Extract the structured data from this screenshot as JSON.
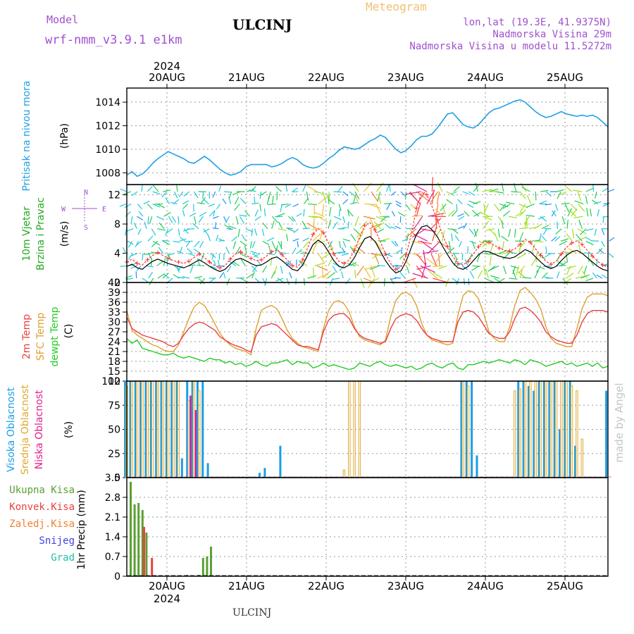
{
  "header": {
    "model_label": "Model",
    "model_value": "wrf-nmm_v3.9.1 e1km",
    "station": "ULCINJ",
    "meteogram": "Meteogram",
    "lonlat": "lon,lat (19.3E, 41.9375N)",
    "altitude": "Nadmorska Visina 29m",
    "model_altitude": "Nadmorska Visina u modelu 11.5272m",
    "year": "2024",
    "footer_station": "ULCINJ",
    "watermark": "made by Angel"
  },
  "colors": {
    "pressure": "#1ea0e6",
    "wind_speed": "#000000",
    "wind_gust": "#ff3030",
    "temp_2m": "#e84040",
    "sfc_temp": "#e0a030",
    "dewpoint": "#22cc22",
    "cloud_high": "#1a9ee6",
    "cloud_mid": "#e0a830",
    "cloud_low": "#e0208a",
    "precip_total": "#5aa032",
    "precip_conv": "#e84040",
    "precip_strat": "#f08030",
    "snow": "#4040e0",
    "hail": "#20c0a0"
  },
  "days": [
    "20AUG",
    "21AUG",
    "22AUG",
    "23AUG",
    "24AUG",
    "25AUG"
  ],
  "compass": {
    "n": "N",
    "s": "S",
    "e": "E",
    "w": "W"
  },
  "chart_data": [
    {
      "type": "line",
      "panel": "pressure",
      "ylabel_series": "Pritisak na nivou mora",
      "ylabel_unit": "(hPa)",
      "ylim": [
        1007,
        1015.2
      ],
      "yticks": [
        "1008",
        "1010",
        "1012",
        "1014"
      ],
      "x_hours_start": 0,
      "x_hours_step": 1,
      "series": [
        {
          "values": [
            1007.8,
            1008.1,
            1007.7,
            1007.9,
            1008.3,
            1008.8,
            1009.2,
            1009.5,
            1009.8,
            1009.6,
            1009.4,
            1009.2,
            1008.9,
            1008.8,
            1009.1,
            1009.4,
            1009.1,
            1008.7,
            1008.3,
            1008.0,
            1007.8,
            1007.9,
            1008.1,
            1008.5,
            1008.7,
            1008.7,
            1008.7,
            1008.7,
            1008.5,
            1008.6,
            1008.8,
            1009.1,
            1009.3,
            1009.1,
            1008.7,
            1008.5,
            1008.4,
            1008.5,
            1008.8,
            1009.2,
            1009.5,
            1009.9,
            1010.2,
            1010.1,
            1010.0,
            1010.1,
            1010.4,
            1010.7,
            1010.9,
            1011.2,
            1011.0,
            1010.5,
            1010.0,
            1009.7,
            1009.9,
            1010.3,
            1010.8,
            1011.1,
            1011.1,
            1011.3,
            1011.8,
            1012.4,
            1013.0,
            1013.1,
            1012.6,
            1012.1,
            1011.9,
            1011.8,
            1012.1,
            1012.6,
            1013.1,
            1013.4,
            1013.5,
            1013.7,
            1013.9,
            1014.1,
            1014.2,
            1014.0,
            1013.6,
            1013.2,
            1012.9,
            1012.7,
            1012.8,
            1013.0,
            1013.2,
            1013.0,
            1012.9,
            1012.8,
            1012.9,
            1012.8,
            1012.9,
            1012.7,
            1012.3,
            1011.9
          ]
        }
      ]
    },
    {
      "type": "line",
      "panel": "wind",
      "ylabel_series": "10m Vjetar",
      "ylabel_sub": "Brzina i Pravac",
      "ylabel_unit": "(m/s)",
      "ylim": [
        0,
        13.4
      ],
      "yticks": [
        "0",
        "4",
        "8",
        "12"
      ],
      "series": [
        {
          "name": "wind_speed",
          "values": [
            2.2,
            2.5,
            2.0,
            1.8,
            2.4,
            2.9,
            3.2,
            2.9,
            2.6,
            2.4,
            2.2,
            2.0,
            2.3,
            2.7,
            3.1,
            2.7,
            2.2,
            1.8,
            1.5,
            1.8,
            2.5,
            3.1,
            3.3,
            3.0,
            2.6,
            2.3,
            2.4,
            2.8,
            3.3,
            3.5,
            3.0,
            2.4,
            1.8,
            1.6,
            2.4,
            3.8,
            5.2,
            5.8,
            5.3,
            4.2,
            3.0,
            2.2,
            2.0,
            2.4,
            3.4,
            4.8,
            6.0,
            6.3,
            5.6,
            4.3,
            3.0,
            2.0,
            1.3,
            1.6,
            2.9,
            4.8,
            6.6,
            7.6,
            7.8,
            7.2,
            6.3,
            5.0,
            3.8,
            2.7,
            2.0,
            1.8,
            2.2,
            3.0,
            3.8,
            4.3,
            4.2,
            3.9,
            3.6,
            3.4,
            3.3,
            3.5,
            4.0,
            4.5,
            4.2,
            3.5,
            2.8,
            2.2,
            1.9,
            2.2,
            3.0,
            3.7,
            4.2,
            4.4,
            4.0,
            3.4,
            2.8,
            2.2,
            1.8,
            1.6
          ]
        },
        {
          "name": "wind_gust",
          "values": [
            2.8,
            3.2,
            2.6,
            2.4,
            3.1,
            3.7,
            4.1,
            3.7,
            3.3,
            3.0,
            2.8,
            2.6,
            2.9,
            3.4,
            3.9,
            3.4,
            2.8,
            2.3,
            2.0,
            2.3,
            3.2,
            3.9,
            4.2,
            3.8,
            3.3,
            3.0,
            3.1,
            3.6,
            4.2,
            4.5,
            3.8,
            3.1,
            2.3,
            2.1,
            3.1,
            4.8,
            6.6,
            7.4,
            6.8,
            5.4,
            3.9,
            2.9,
            2.6,
            3.1,
            4.4,
            6.2,
            7.8,
            8.2,
            7.2,
            5.6,
            3.9,
            2.6,
            1.8,
            2.1,
            3.8,
            6.6,
            10.2,
            12.3,
            12.0,
            10.4,
            8.6,
            6.6,
            4.9,
            3.6,
            2.6,
            2.4,
            2.9,
            3.9,
            4.9,
            5.6,
            5.5,
            5.1,
            4.7,
            4.4,
            4.3,
            4.6,
            5.2,
            5.9,
            5.5,
            4.6,
            3.7,
            2.9,
            2.5,
            2.9,
            3.9,
            4.8,
            5.4,
            5.7,
            5.2,
            4.4,
            3.6,
            2.9,
            2.4,
            2.1
          ]
        }
      ]
    },
    {
      "type": "line",
      "panel": "temperature",
      "ylabel_series": [
        "2m Temp",
        "SFC Temp",
        "dewpt Temp"
      ],
      "ylabel_unit": "(C)",
      "ylim": [
        12,
        42
      ],
      "yticks": [
        "12",
        "15",
        "18",
        "21",
        "24",
        "27",
        "30",
        "33",
        "36",
        "39",
        "42"
      ],
      "series": [
        {
          "name": "2m Temp",
          "values": [
            31.5,
            28.0,
            27.0,
            26.0,
            25.5,
            25.0,
            24.5,
            24.0,
            23.0,
            22.5,
            23.5,
            26.0,
            28.0,
            29.3,
            30.0,
            29.5,
            28.5,
            27.5,
            25.5,
            24.5,
            23.5,
            22.8,
            22.3,
            21.5,
            20.8,
            26.0,
            28.5,
            29.0,
            29.5,
            29.0,
            27.5,
            26.0,
            24.5,
            23.0,
            22.5,
            22.5,
            22.0,
            21.5,
            27.0,
            30.5,
            32.0,
            32.5,
            32.5,
            31.0,
            28.0,
            26.0,
            25.0,
            24.5,
            24.0,
            23.5,
            24.0,
            28.0,
            31.0,
            32.0,
            32.5,
            32.0,
            30.5,
            28.0,
            26.0,
            25.0,
            24.5,
            24.0,
            24.0,
            24.0,
            30.0,
            33.0,
            33.5,
            33.0,
            31.5,
            29.0,
            26.5,
            25.5,
            25.0,
            25.0,
            27.0,
            31.0,
            34.0,
            34.5,
            33.5,
            32.0,
            30.0,
            27.0,
            25.5,
            24.5,
            24.0,
            23.5,
            23.5,
            26.0,
            30.0,
            32.5,
            33.5,
            33.5,
            33.5,
            33.0
          ]
        },
        {
          "name": "SFC Temp",
          "values": [
            33.5,
            27.5,
            26.0,
            25.0,
            24.0,
            23.0,
            22.5,
            21.5,
            21.0,
            21.0,
            23.0,
            27.0,
            31.0,
            34.5,
            36.0,
            35.0,
            32.5,
            29.5,
            26.5,
            24.5,
            23.0,
            22.0,
            21.5,
            21.0,
            20.0,
            28.0,
            33.5,
            34.5,
            35.0,
            34.0,
            31.0,
            27.5,
            25.0,
            23.5,
            22.5,
            22.0,
            21.5,
            21.0,
            28.0,
            33.5,
            36.0,
            36.5,
            35.5,
            33.0,
            28.5,
            25.5,
            24.5,
            24.0,
            23.5,
            23.0,
            24.5,
            31.5,
            36.5,
            38.5,
            39.0,
            38.0,
            35.0,
            29.5,
            26.0,
            24.5,
            24.0,
            23.5,
            23.0,
            23.5,
            32.0,
            38.0,
            39.5,
            39.0,
            37.0,
            32.5,
            27.0,
            25.0,
            24.0,
            24.0,
            28.5,
            35.0,
            39.5,
            40.5,
            39.0,
            37.0,
            34.0,
            28.5,
            25.0,
            23.5,
            23.0,
            22.5,
            22.5,
            28.0,
            34.0,
            37.5,
            38.5,
            38.5,
            38.5,
            38.0
          ]
        },
        {
          "name": "dewpt Temp",
          "values": [
            25.0,
            23.5,
            24.5,
            22.0,
            21.5,
            21.0,
            20.5,
            20.0,
            20.0,
            20.5,
            19.5,
            19.0,
            19.5,
            19.0,
            18.5,
            18.0,
            19.0,
            18.5,
            18.5,
            17.5,
            18.0,
            17.0,
            17.5,
            16.5,
            17.0,
            18.0,
            17.0,
            16.5,
            17.5,
            17.5,
            18.0,
            18.5,
            17.0,
            18.0,
            17.5,
            17.5,
            16.0,
            16.5,
            17.5,
            16.5,
            17.0,
            16.5,
            16.0,
            15.5,
            16.0,
            17.5,
            17.0,
            16.5,
            17.5,
            18.0,
            17.0,
            16.5,
            17.0,
            16.5,
            16.0,
            16.5,
            15.5,
            16.0,
            17.0,
            17.5,
            16.5,
            16.0,
            17.0,
            17.5,
            16.0,
            15.5,
            17.0,
            17.0,
            17.5,
            18.0,
            17.5,
            18.0,
            18.5,
            18.0,
            17.5,
            18.5,
            18.0,
            17.0,
            18.5,
            18.0,
            17.5,
            16.5,
            17.0,
            17.5,
            18.0,
            17.0,
            17.5,
            16.5,
            17.0,
            17.5,
            16.5,
            17.5,
            16.0,
            16.5
          ]
        }
      ]
    },
    {
      "type": "bar",
      "panel": "clouds",
      "ylabel_series": [
        "Visoka Oblacnost",
        "Srednja Oblacnost",
        "Niska Oblacnost"
      ],
      "ylabel_unit": "(%)",
      "ylim": [
        0,
        100
      ],
      "yticks": [
        "0",
        "25",
        "50",
        "75",
        "100"
      ],
      "series": [
        {
          "name": "Visoka Oblacnost",
          "values": [
            100,
            100,
            100,
            100,
            100,
            100,
            100,
            100,
            100,
            100,
            100,
            20,
            100,
            100,
            100,
            100,
            15,
            0,
            0,
            0,
            0,
            0,
            0,
            0,
            0,
            0,
            5,
            10,
            0,
            0,
            33,
            0,
            0,
            0,
            0,
            0,
            0,
            0,
            0,
            0,
            0,
            0,
            0,
            0,
            0,
            0,
            0,
            0,
            0,
            0,
            0,
            0,
            0,
            0,
            0,
            0,
            0,
            0,
            0,
            0,
            0,
            0,
            0,
            0,
            0,
            100,
            100,
            100,
            23,
            0,
            0,
            0,
            0,
            0,
            0,
            0,
            100,
            100,
            95,
            90,
            100,
            100,
            100,
            100,
            50,
            100,
            100,
            33,
            0,
            0,
            0,
            0,
            0,
            90
          ]
        },
        {
          "name": "Srednja Oblacnost",
          "values": [
            95,
            100,
            100,
            100,
            100,
            100,
            100,
            100,
            100,
            100,
            100,
            0,
            80,
            100,
            90,
            0,
            0,
            0,
            0,
            0,
            0,
            0,
            0,
            0,
            0,
            0,
            0,
            0,
            0,
            0,
            0,
            0,
            0,
            0,
            0,
            0,
            0,
            0,
            0,
            0,
            0,
            0,
            8,
            100,
            100,
            100,
            0,
            0,
            0,
            0,
            0,
            0,
            0,
            0,
            0,
            0,
            0,
            0,
            0,
            0,
            0,
            0,
            0,
            0,
            0,
            100,
            95,
            0,
            0,
            0,
            0,
            0,
            0,
            0,
            0,
            90,
            92,
            100,
            100,
            100,
            100,
            100,
            100,
            100,
            100,
            100,
            95,
            90,
            40,
            0,
            0,
            0,
            0,
            0
          ]
        },
        {
          "name": "Niska Oblacnost",
          "values": [
            0,
            0,
            0,
            0,
            0,
            0,
            0,
            0,
            0,
            0,
            0,
            0,
            85,
            70,
            0,
            0,
            0,
            0,
            0,
            0,
            0,
            0,
            0,
            0,
            0,
            0,
            0,
            0,
            0,
            0,
            0,
            0,
            0,
            0,
            0,
            0,
            0,
            0,
            0,
            0,
            0,
            0,
            0,
            0,
            0,
            0,
            0,
            0,
            0,
            0,
            0,
            0,
            0,
            0,
            0,
            0,
            0,
            0,
            0,
            0,
            0,
            0,
            0,
            0,
            0,
            0,
            0,
            0,
            0,
            0,
            0,
            0,
            0,
            0,
            0,
            0,
            0,
            0,
            0,
            0,
            0,
            0,
            0,
            0,
            0,
            0,
            0,
            0,
            0,
            0,
            0,
            0,
            0,
            0
          ]
        }
      ]
    },
    {
      "type": "bar",
      "panel": "precip",
      "ylabel_unit": "1hr Precip (mm)",
      "legend": [
        "Ukupna Kisa",
        "Konvek.Kisa",
        "Zaledj.Kisa",
        "Snijeg",
        "Grad"
      ],
      "ylim": [
        0,
        3.5
      ],
      "yticks": [
        "0",
        "0.7",
        "1.4",
        "2.1",
        "2.8",
        "3.5"
      ],
      "series": [
        {
          "name": "Ukupna Kisa",
          "values": [
            3.35,
            2.55,
            2.6,
            2.35,
            1.55,
            0,
            0,
            0,
            0,
            0.05,
            0,
            0,
            0.05,
            0.65,
            0.7,
            1.05
          ]
        },
        {
          "name": "Konvek.Kisa",
          "values": [
            0,
            0,
            0,
            1.75,
            0,
            0.65,
            0,
            0,
            0,
            0,
            0,
            0,
            0,
            0,
            0,
            0
          ]
        }
      ]
    }
  ]
}
